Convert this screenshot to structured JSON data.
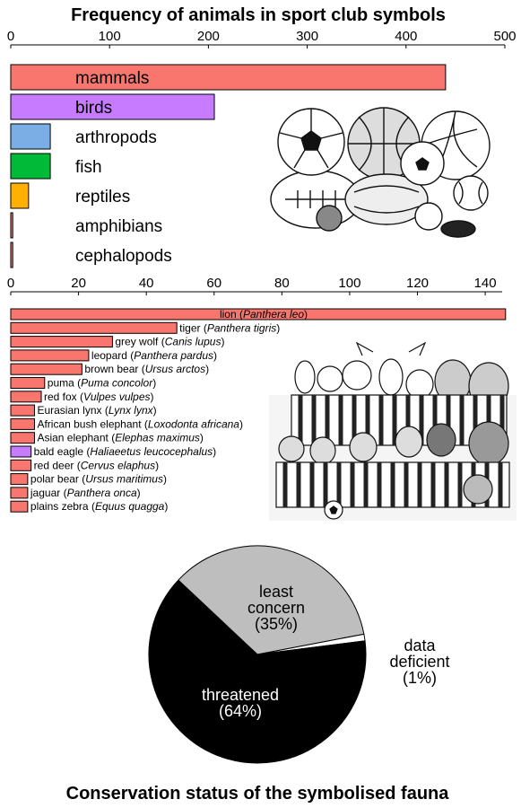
{
  "chart_data": [
    {
      "type": "bar",
      "orientation": "horizontal",
      "title": "Frequency of animals in sport club symbols",
      "xlim": [
        0,
        500
      ],
      "xticks": [
        0,
        100,
        200,
        300,
        400,
        500
      ],
      "xticks_position": "top",
      "categories": [
        "mammals",
        "birds",
        "arthropods",
        "fish",
        "reptiles",
        "amphibians",
        "cephalopods"
      ],
      "values": [
        440,
        206,
        40,
        40,
        18,
        2,
        2
      ],
      "colors": [
        "#f8766d",
        "#c77cff",
        "#7caee6",
        "#00ba38",
        "#ffb000",
        "#f8766d",
        "#f8766d"
      ],
      "illustration": "sports-balls-sketch"
    },
    {
      "type": "bar",
      "orientation": "horizontal",
      "xlim": [
        0,
        145
      ],
      "xticks": [
        0,
        20,
        40,
        60,
        80,
        100,
        120,
        140
      ],
      "xticks_position": "top",
      "items": [
        {
          "common": "lion",
          "scientific": "Panthera leo",
          "value": 146,
          "color": "#f8766d"
        },
        {
          "common": "tiger",
          "scientific": "Panthera tigris",
          "value": 49,
          "color": "#f8766d"
        },
        {
          "common": "grey wolf",
          "scientific": "Canis lupus",
          "value": 30,
          "color": "#f8766d"
        },
        {
          "common": "leopard",
          "scientific": "Panthera pardus",
          "value": 23,
          "color": "#f8766d"
        },
        {
          "common": "brown bear",
          "scientific": "Ursus arctos",
          "value": 21,
          "color": "#f8766d"
        },
        {
          "common": "puma",
          "scientific": "Puma concolor",
          "value": 10,
          "color": "#f8766d"
        },
        {
          "common": "red fox",
          "scientific": "Vulpes vulpes",
          "value": 9,
          "color": "#f8766d"
        },
        {
          "common": "Eurasian lynx",
          "scientific": "Lynx lynx",
          "value": 7,
          "color": "#f8766d"
        },
        {
          "common": "African bush elephant",
          "scientific": "Loxodonta africana",
          "value": 7,
          "color": "#f8766d"
        },
        {
          "common": "Asian elephant",
          "scientific": "Elephas maximus",
          "value": 7,
          "color": "#f8766d"
        },
        {
          "common": "bald eagle",
          "scientific": "Haliaeetus leucocephalus",
          "value": 6,
          "color": "#c77cff"
        },
        {
          "common": "red deer",
          "scientific": "Cervus elaphus",
          "value": 6,
          "color": "#f8766d"
        },
        {
          "common": "polar bear",
          "scientific": "Ursus maritimus",
          "value": 5,
          "color": "#f8766d"
        },
        {
          "common": "jaguar",
          "scientific": "Panthera onca",
          "value": 5,
          "color": "#f8766d"
        },
        {
          "common": "plains zebra",
          "scientific": "Equus quagga",
          "value": 5,
          "color": "#f8766d"
        }
      ],
      "illustration": "animal-football-team-sketch"
    },
    {
      "type": "pie",
      "title": "Conservation status of the symbolised fauna",
      "slices": [
        {
          "label_lines": [
            "least",
            "concern"
          ],
          "pct_label": "(35%)",
          "value": 35,
          "color": "#bebebe",
          "text_color": "#000000"
        },
        {
          "label_lines": [
            "data",
            "deficient"
          ],
          "pct_label": "(1%)",
          "value": 1,
          "color": "#ffffff",
          "text_color": "#000000"
        },
        {
          "label_lines": [
            "threatened"
          ],
          "pct_label": "(64%)",
          "value": 64,
          "color": "#000000",
          "text_color": "#ffffff"
        }
      ]
    }
  ]
}
